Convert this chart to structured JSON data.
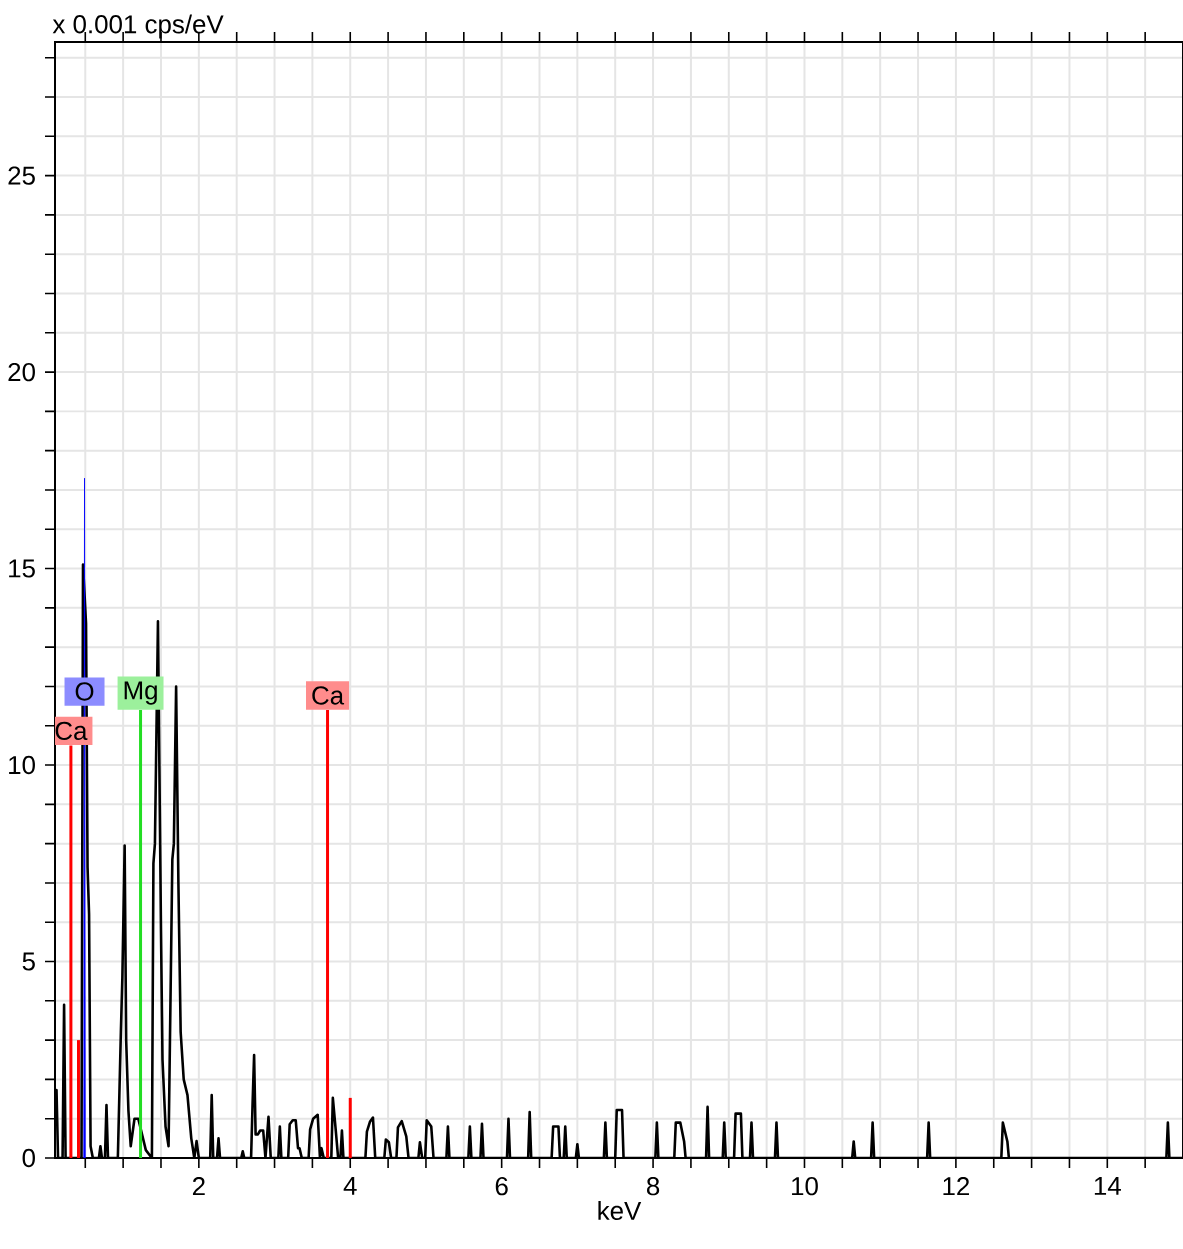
{
  "chart_data": {
    "type": "line",
    "ylabel": "x 0.001 cps/eV",
    "xlabel": "keV",
    "xlim": [
      0.1,
      15
    ],
    "ylim": [
      0,
      28.4
    ],
    "xticks": [
      {
        "value": 0.5,
        "label": null
      },
      {
        "value": 1,
        "label": null
      },
      {
        "value": 1.5,
        "label": null
      },
      2,
      {
        "value": 2.5,
        "label": null
      },
      {
        "value": 3,
        "label": null
      },
      {
        "value": 3.5,
        "label": null
      },
      4,
      {
        "value": 4.5,
        "label": null
      },
      {
        "value": 5,
        "label": null
      },
      {
        "value": 5.5,
        "label": null
      },
      6,
      {
        "value": 6.5,
        "label": null
      },
      {
        "value": 7,
        "label": null
      },
      {
        "value": 7.5,
        "label": null
      },
      8,
      {
        "value": 8.5,
        "label": null
      },
      {
        "value": 9,
        "label": null
      },
      {
        "value": 9.5,
        "label": null
      },
      10,
      {
        "value": 10.5,
        "label": null
      },
      {
        "value": 11,
        "label": null
      },
      {
        "value": 11.5,
        "label": null
      },
      12,
      {
        "value": 12.5,
        "label": null
      },
      {
        "value": 13,
        "label": null
      },
      {
        "value": 13.5,
        "label": null
      },
      14,
      {
        "value": 14.5,
        "label": null
      }
    ],
    "yticks": [
      0,
      {
        "value": 1,
        "label": null
      },
      {
        "value": 2,
        "label": null
      },
      {
        "value": 3,
        "label": null
      },
      {
        "value": 4,
        "label": null
      },
      5,
      {
        "value": 6,
        "label": null
      },
      {
        "value": 7,
        "label": null
      },
      {
        "value": 8,
        "label": null
      },
      {
        "value": 9,
        "label": null
      },
      10,
      {
        "value": 11,
        "label": null
      },
      {
        "value": 12,
        "label": null
      },
      {
        "value": 13,
        "label": null
      },
      {
        "value": 14,
        "label": null
      },
      15,
      {
        "value": 16,
        "label": null
      },
      {
        "value": 17,
        "label": null
      },
      {
        "value": 18,
        "label": null
      },
      {
        "value": 19,
        "label": null
      },
      20,
      {
        "value": 21,
        "label": null
      },
      {
        "value": 22,
        "label": null
      },
      {
        "value": 23,
        "label": null
      },
      {
        "value": 24,
        "label": null
      },
      25,
      {
        "value": 26,
        "label": null
      },
      {
        "value": 27,
        "label": null
      },
      {
        "value": 28,
        "label": null
      }
    ],
    "grid": true,
    "series": [
      {
        "color": "#000000",
        "x": [
          0.1,
          0.12,
          0.14,
          0.2,
          0.22,
          0.24,
          0.3,
          0.45,
          0.47,
          0.51,
          0.53,
          0.55,
          0.57,
          0.6,
          0.68,
          0.7,
          0.72,
          0.76,
          0.78,
          0.8,
          0.93,
          0.97,
          0.99,
          1.02,
          1.04,
          1.07,
          1.1,
          1.15,
          1.2,
          1.3,
          1.38,
          1.4,
          1.42,
          1.46,
          1.5,
          1.52,
          1.56,
          1.6,
          1.65,
          1.67,
          1.7,
          1.73,
          1.76,
          1.8,
          1.85,
          1.9,
          1.94,
          1.97,
          2.0,
          2.15,
          2.17,
          2.19,
          2.24,
          2.26,
          2.28,
          2.56,
          2.58,
          2.6,
          2.69,
          2.71,
          2.73,
          2.75,
          2.78,
          2.81,
          2.85,
          2.88,
          2.92,
          2.95,
          3.05,
          3.07,
          3.09,
          3.18,
          3.2,
          3.24,
          3.28,
          3.31,
          3.33,
          3.36,
          3.45,
          3.47,
          3.51,
          3.57,
          3.6,
          3.62,
          3.65,
          3.75,
          3.77,
          3.81,
          3.84,
          3.87,
          3.89,
          3.91,
          4.2,
          4.22,
          4.26,
          4.3,
          4.33,
          4.45,
          4.47,
          4.51,
          4.54,
          4.61,
          4.63,
          4.68,
          4.74,
          4.77,
          4.9,
          4.92,
          4.95,
          4.99,
          5.01,
          5.07,
          5.1,
          5.27,
          5.29,
          5.31,
          5.56,
          5.58,
          5.6,
          5.72,
          5.74,
          5.76,
          6.07,
          6.09,
          6.11,
          6.35,
          6.37,
          6.39,
          6.66,
          6.68,
          6.75,
          6.77,
          6.82,
          6.84,
          6.86,
          6.98,
          7.0,
          7.02,
          7.35,
          7.37,
          7.39,
          7.5,
          7.52,
          7.59,
          7.61,
          8.03,
          8.05,
          8.07,
          8.28,
          8.3,
          8.36,
          8.41,
          8.43,
          8.7,
          8.72,
          8.74,
          8.92,
          8.94,
          8.96,
          9.07,
          9.09,
          9.16,
          9.18,
          9.28,
          9.3,
          9.32,
          9.61,
          9.63,
          9.65,
          10.63,
          10.65,
          10.67,
          10.88,
          10.9,
          10.92,
          11.62,
          11.64,
          11.66,
          12.6,
          12.62,
          12.68,
          12.7,
          14.78,
          14.8,
          14.82,
          15.0
        ],
        "values": [
          1.7,
          1.73,
          0,
          0,
          3.9,
          0,
          0,
          0,
          15.1,
          13.6,
          7.4,
          6.2,
          0.3,
          0,
          0,
          0.3,
          0,
          0,
          1.35,
          0,
          0,
          3.2,
          4.6,
          7.95,
          3.0,
          1.2,
          0.3,
          1.0,
          1.0,
          0.2,
          0,
          7.5,
          8.0,
          13.66,
          5.8,
          2.5,
          0.8,
          0.3,
          7.6,
          8.0,
          12.0,
          7.0,
          3.2,
          2.0,
          1.6,
          0.5,
          0,
          0.43,
          0,
          0,
          1.6,
          0,
          0,
          0.5,
          0,
          0,
          0.17,
          0,
          0,
          1.4,
          2.62,
          0.6,
          0.6,
          0.7,
          0.7,
          0,
          1.05,
          0,
          0,
          0.8,
          0,
          0,
          0.86,
          0.96,
          0.96,
          0.25,
          0.25,
          0,
          0,
          0.73,
          1.0,
          1.1,
          0,
          0.25,
          0,
          0,
          1.53,
          0.67,
          0,
          0,
          0.7,
          0,
          0,
          0.67,
          0.92,
          1.03,
          0,
          0,
          0.47,
          0.4,
          0,
          0,
          0.78,
          0.94,
          0.55,
          0,
          0,
          0.4,
          0,
          0,
          0.96,
          0.8,
          0,
          0,
          0.8,
          0,
          0,
          0.8,
          0,
          0,
          0.87,
          0,
          0,
          1.0,
          0,
          0,
          1.17,
          0,
          0,
          0.8,
          0.8,
          0,
          0,
          0.8,
          0,
          0,
          0.35,
          0,
          0,
          0.9,
          0,
          0,
          1.22,
          1.22,
          0,
          0,
          0.9,
          0,
          0,
          0.9,
          0.9,
          0.42,
          0,
          0,
          1.3,
          0,
          0,
          0.9,
          0,
          0,
          1.13,
          1.13,
          0,
          0,
          0.9,
          0,
          0,
          0.9,
          0,
          0,
          0.42,
          0,
          0,
          0.9,
          0,
          0,
          0.9,
          0,
          0,
          0.9,
          0.42,
          0,
          0,
          0.9,
          0,
          0
        ]
      },
      {
        "type": "area",
        "color": "#0000ff",
        "x": [
          0.48,
          0.49,
          0.5
        ],
        "values": [
          0,
          17.3,
          0
        ]
      },
      {
        "type": "bar",
        "color": "#ff0000",
        "x": [
          0.31,
          0.41,
          3.7,
          4.0
        ],
        "values": [
          10.5,
          3.0,
          11.4,
          1.53
        ]
      },
      {
        "type": "bar",
        "color": "#22dd22",
        "x": [
          1.23
        ],
        "values": [
          11.4
        ]
      }
    ],
    "annotations": [
      {
        "text": "Ca",
        "x": 0.31,
        "y": 10.5
      },
      {
        "text": "O",
        "x": 0.49,
        "y": 11.5
      },
      {
        "text": "Mg",
        "x": 1.23,
        "y": 11.4
      },
      {
        "text": "Ca",
        "x": 3.7,
        "y": 11.4
      }
    ]
  }
}
